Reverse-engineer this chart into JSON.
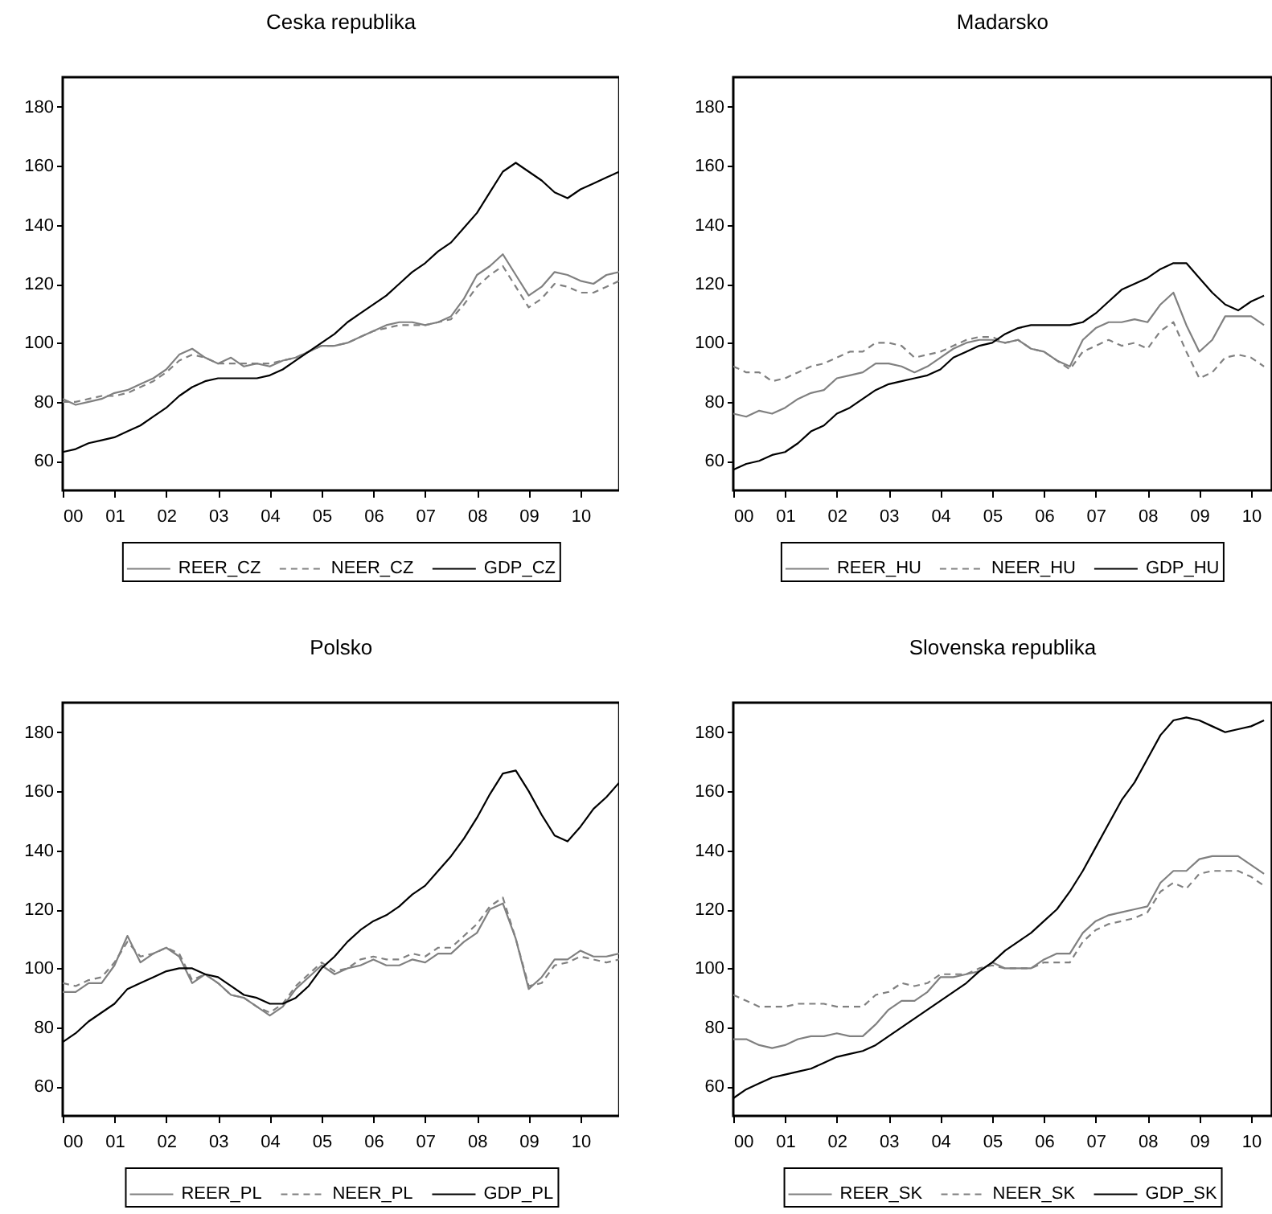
{
  "chart_data": [
    {
      "type": "line",
      "title": "Ceska republika",
      "legend": "bottom",
      "grid": false,
      "x": [
        2000,
        2000.25,
        2000.5,
        2000.75,
        2001,
        2001.25,
        2001.5,
        2001.75,
        2002,
        2002.25,
        2002.5,
        2002.75,
        2003,
        2003.25,
        2003.5,
        2003.75,
        2004,
        2004.25,
        2004.5,
        2004.75,
        2005,
        2005.25,
        2005.5,
        2005.75,
        2006,
        2006.25,
        2006.5,
        2006.75,
        2007,
        2007.25,
        2007.5,
        2007.75,
        2008,
        2008.25,
        2008.5,
        2008.75,
        2009,
        2009.25,
        2009.5,
        2009.75,
        2010,
        2010.25,
        2010.5,
        2010.75
      ],
      "xlim": [
        2000,
        2010.75
      ],
      "xticks": [
        {
          "value": 2000,
          "label": "00"
        },
        {
          "value": 2001,
          "label": "01"
        },
        {
          "value": 2002,
          "label": "02"
        },
        {
          "value": 2003,
          "label": "03"
        },
        {
          "value": 2004,
          "label": "04"
        },
        {
          "value": 2005,
          "label": "05"
        },
        {
          "value": 2006,
          "label": "06"
        },
        {
          "value": 2007,
          "label": "07"
        },
        {
          "value": 2008,
          "label": "08"
        },
        {
          "value": 2009,
          "label": "09"
        },
        {
          "value": 2010,
          "label": "10"
        }
      ],
      "ylim": [
        50,
        190
      ],
      "yticks": [
        60,
        80,
        100,
        120,
        140,
        160,
        180
      ],
      "series": [
        {
          "name": "REER_CZ",
          "color": "#808080",
          "line_style": "solid",
          "values": [
            81,
            79,
            80,
            81,
            83,
            84,
            86,
            88,
            91,
            96,
            98,
            95,
            93,
            95,
            92,
            93,
            92,
            94,
            95,
            97,
            99,
            99,
            100,
            102,
            104,
            106,
            107,
            107,
            106,
            107,
            109,
            115,
            123,
            126,
            130,
            123,
            116,
            119,
            124,
            123,
            121,
            120,
            123,
            124
          ]
        },
        {
          "name": "NEER_CZ",
          "color": "#808080",
          "line_style": "dashed",
          "values": [
            80,
            80,
            81,
            82,
            82,
            83,
            85,
            87,
            90,
            94,
            96,
            95,
            93,
            93,
            93,
            93,
            93,
            94,
            95,
            97,
            99,
            99,
            100,
            102,
            104,
            105,
            106,
            106,
            106,
            107,
            108,
            113,
            119,
            123,
            126,
            119,
            112,
            115,
            120,
            119,
            117,
            117,
            119,
            121
          ]
        },
        {
          "name": "GDP_CZ",
          "color": "#000000",
          "line_style": "solid",
          "values": [
            63,
            64,
            66,
            67,
            68,
            70,
            72,
            75,
            78,
            82,
            85,
            87,
            88,
            88,
            88,
            88,
            89,
            91,
            94,
            97,
            100,
            103,
            107,
            110,
            113,
            116,
            120,
            124,
            127,
            131,
            134,
            139,
            144,
            151,
            158,
            161,
            158,
            155,
            151,
            149,
            152,
            154,
            156,
            158
          ]
        }
      ]
    },
    {
      "type": "line",
      "title": "Madarsko",
      "legend": "bottom",
      "grid": false,
      "x": [
        2000,
        2000.25,
        2000.5,
        2000.75,
        2001,
        2001.25,
        2001.5,
        2001.75,
        2002,
        2002.25,
        2002.5,
        2002.75,
        2003,
        2003.25,
        2003.5,
        2003.75,
        2004,
        2004.25,
        2004.5,
        2004.75,
        2005,
        2005.25,
        2005.5,
        2005.75,
        2006,
        2006.25,
        2006.5,
        2006.75,
        2007,
        2007.25,
        2007.5,
        2007.75,
        2008,
        2008.25,
        2008.5,
        2008.75,
        2009,
        2009.25,
        2009.5,
        2009.75,
        2010,
        2010.25
      ],
      "xlim": [
        2000,
        2010.4
      ],
      "xticks": [
        {
          "value": 2000,
          "label": "00"
        },
        {
          "value": 2001,
          "label": "01"
        },
        {
          "value": 2002,
          "label": "02"
        },
        {
          "value": 2003,
          "label": "03"
        },
        {
          "value": 2004,
          "label": "04"
        },
        {
          "value": 2005,
          "label": "05"
        },
        {
          "value": 2006,
          "label": "06"
        },
        {
          "value": 2007,
          "label": "07"
        },
        {
          "value": 2008,
          "label": "08"
        },
        {
          "value": 2009,
          "label": "09"
        },
        {
          "value": 2010,
          "label": "10"
        }
      ],
      "ylim": [
        50,
        190
      ],
      "yticks": [
        60,
        80,
        100,
        120,
        140,
        160,
        180
      ],
      "series": [
        {
          "name": "REER_HU",
          "color": "#808080",
          "line_style": "solid",
          "values": [
            76,
            75,
            77,
            76,
            78,
            81,
            83,
            84,
            88,
            89,
            90,
            93,
            93,
            92,
            90,
            92,
            95,
            98,
            100,
            101,
            101,
            100,
            101,
            98,
            97,
            94,
            92,
            101,
            105,
            107,
            107,
            108,
            107,
            113,
            117,
            106,
            97,
            101,
            109,
            109,
            109,
            106
          ]
        },
        {
          "name": "NEER_HU",
          "color": "#808080",
          "line_style": "dashed",
          "values": [
            92,
            90,
            90,
            87,
            88,
            90,
            92,
            93,
            95,
            97,
            97,
            100,
            100,
            99,
            95,
            96,
            97,
            99,
            101,
            102,
            102,
            100,
            101,
            98,
            97,
            94,
            91,
            97,
            99,
            101,
            99,
            100,
            98,
            104,
            107,
            97,
            88,
            90,
            95,
            96,
            95,
            92
          ]
        },
        {
          "name": "GDP_HU",
          "color": "#000000",
          "line_style": "solid",
          "values": [
            57,
            59,
            60,
            62,
            63,
            66,
            70,
            72,
            76,
            78,
            81,
            84,
            86,
            87,
            88,
            89,
            91,
            95,
            97,
            99,
            100,
            103,
            105,
            106,
            106,
            106,
            106,
            107,
            110,
            114,
            118,
            120,
            122,
            125,
            127,
            127,
            122,
            117,
            113,
            111,
            114,
            116
          ]
        }
      ]
    },
    {
      "type": "line",
      "title": "Polsko",
      "legend": "bottom",
      "grid": false,
      "x": [
        2000,
        2000.25,
        2000.5,
        2000.75,
        2001,
        2001.25,
        2001.5,
        2001.75,
        2002,
        2002.25,
        2002.5,
        2002.75,
        2003,
        2003.25,
        2003.5,
        2003.75,
        2004,
        2004.25,
        2004.5,
        2004.75,
        2005,
        2005.25,
        2005.5,
        2005.75,
        2006,
        2006.25,
        2006.5,
        2006.75,
        2007,
        2007.25,
        2007.5,
        2007.75,
        2008,
        2008.25,
        2008.5,
        2008.75,
        2009,
        2009.25,
        2009.5,
        2009.75,
        2010,
        2010.25,
        2010.5,
        2010.75
      ],
      "xlim": [
        2000,
        2010.75
      ],
      "xticks": [
        {
          "value": 2000,
          "label": "00"
        },
        {
          "value": 2001,
          "label": "01"
        },
        {
          "value": 2002,
          "label": "02"
        },
        {
          "value": 2003,
          "label": "03"
        },
        {
          "value": 2004,
          "label": "04"
        },
        {
          "value": 2005,
          "label": "05"
        },
        {
          "value": 2006,
          "label": "06"
        },
        {
          "value": 2007,
          "label": "07"
        },
        {
          "value": 2008,
          "label": "08"
        },
        {
          "value": 2009,
          "label": "09"
        },
        {
          "value": 2010,
          "label": "10"
        }
      ],
      "ylim": [
        50,
        190
      ],
      "yticks": [
        60,
        80,
        100,
        120,
        140,
        160,
        180
      ],
      "series": [
        {
          "name": "REER_PL",
          "color": "#808080",
          "line_style": "solid",
          "values": [
            92,
            92,
            95,
            95,
            101,
            111,
            102,
            105,
            107,
            104,
            95,
            98,
            95,
            91,
            90,
            87,
            84,
            87,
            93,
            97,
            101,
            98,
            100,
            101,
            103,
            101,
            101,
            103,
            102,
            105,
            105,
            109,
            112,
            120,
            122,
            110,
            93,
            97,
            103,
            103,
            106,
            104,
            104,
            105
          ]
        },
        {
          "name": "NEER_PL",
          "color": "#808080",
          "line_style": "dashed",
          "values": [
            95,
            94,
            96,
            97,
            102,
            109,
            104,
            105,
            107,
            105,
            96,
            98,
            95,
            91,
            90,
            87,
            85,
            88,
            94,
            98,
            102,
            99,
            100,
            103,
            104,
            103,
            103,
            105,
            104,
            107,
            107,
            111,
            115,
            121,
            124,
            110,
            94,
            95,
            101,
            102,
            104,
            103,
            102,
            103
          ]
        },
        {
          "name": "GDP_PL",
          "color": "#000000",
          "line_style": "solid",
          "values": [
            75,
            78,
            82,
            85,
            88,
            93,
            95,
            97,
            99,
            100,
            100,
            98,
            97,
            94,
            91,
            90,
            88,
            88,
            90,
            94,
            100,
            104,
            109,
            113,
            116,
            118,
            121,
            125,
            128,
            133,
            138,
            144,
            151,
            159,
            166,
            167,
            160,
            152,
            145,
            143,
            148,
            154,
            158,
            163
          ]
        }
      ]
    },
    {
      "type": "line",
      "title": "Slovenska republika",
      "legend": "bottom",
      "grid": false,
      "x": [
        2000,
        2000.25,
        2000.5,
        2000.75,
        2001,
        2001.25,
        2001.5,
        2001.75,
        2002,
        2002.25,
        2002.5,
        2002.75,
        2003,
        2003.25,
        2003.5,
        2003.75,
        2004,
        2004.25,
        2004.5,
        2004.75,
        2005,
        2005.25,
        2005.5,
        2005.75,
        2006,
        2006.25,
        2006.5,
        2006.75,
        2007,
        2007.25,
        2007.5,
        2007.75,
        2008,
        2008.25,
        2008.5,
        2008.75,
        2009,
        2009.25,
        2009.5,
        2009.75,
        2010,
        2010.25
      ],
      "xlim": [
        2000,
        2010.4
      ],
      "xticks": [
        {
          "value": 2000,
          "label": "00"
        },
        {
          "value": 2001,
          "label": "01"
        },
        {
          "value": 2002,
          "label": "02"
        },
        {
          "value": 2003,
          "label": "03"
        },
        {
          "value": 2004,
          "label": "04"
        },
        {
          "value": 2005,
          "label": "05"
        },
        {
          "value": 2006,
          "label": "06"
        },
        {
          "value": 2007,
          "label": "07"
        },
        {
          "value": 2008,
          "label": "08"
        },
        {
          "value": 2009,
          "label": "09"
        },
        {
          "value": 2010,
          "label": "10"
        }
      ],
      "ylim": [
        50,
        190
      ],
      "yticks": [
        60,
        80,
        100,
        120,
        140,
        160,
        180
      ],
      "series": [
        {
          "name": "REER_SK",
          "color": "#808080",
          "line_style": "solid",
          "values": [
            76,
            76,
            74,
            73,
            74,
            76,
            77,
            77,
            78,
            77,
            77,
            81,
            86,
            89,
            89,
            92,
            97,
            97,
            98,
            99,
            102,
            100,
            100,
            100,
            103,
            105,
            105,
            112,
            116,
            118,
            119,
            120,
            121,
            129,
            133,
            133,
            137,
            138,
            138,
            138,
            135,
            132
          ]
        },
        {
          "name": "NEER_SK",
          "color": "#808080",
          "line_style": "dashed",
          "values": [
            91,
            89,
            87,
            87,
            87,
            88,
            88,
            88,
            87,
            87,
            87,
            91,
            92,
            95,
            94,
            95,
            98,
            98,
            98,
            100,
            101,
            100,
            100,
            100,
            102,
            102,
            102,
            109,
            113,
            115,
            116,
            117,
            119,
            126,
            129,
            127,
            132,
            133,
            133,
            133,
            131,
            128
          ]
        },
        {
          "name": "GDP_SK",
          "color": "#000000",
          "line_style": "solid",
          "values": [
            56,
            59,
            61,
            63,
            64,
            65,
            66,
            68,
            70,
            71,
            72,
            74,
            77,
            80,
            83,
            86,
            89,
            92,
            95,
            99,
            102,
            106,
            109,
            112,
            116,
            120,
            126,
            133,
            141,
            149,
            157,
            163,
            171,
            179,
            184,
            185,
            184,
            182,
            180,
            181,
            182,
            184
          ]
        }
      ]
    }
  ]
}
